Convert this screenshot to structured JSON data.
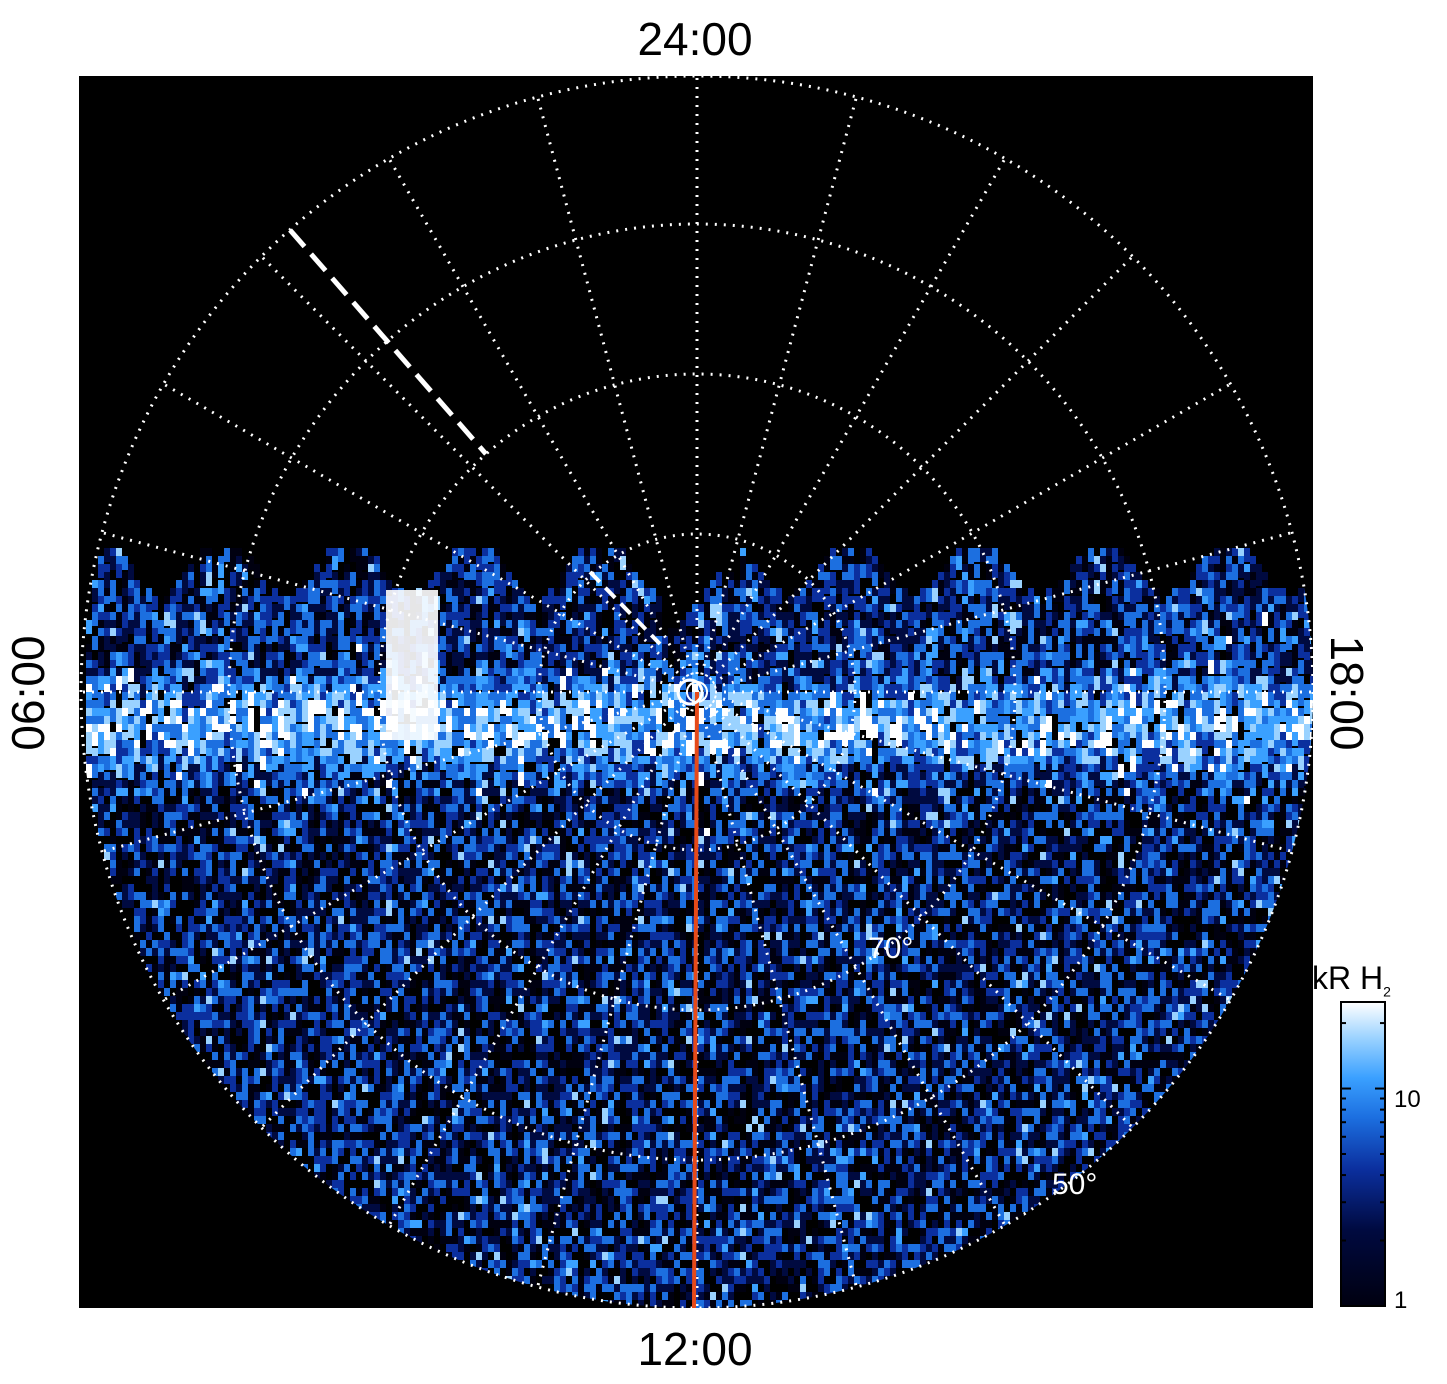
{
  "labels": {
    "top": "24:00",
    "bottom": "12:00",
    "left": "06:00",
    "right": "18:00",
    "lat_70": "70°",
    "lat_50": "50°"
  },
  "colorbar": {
    "title": "kR H",
    "title_sub": "2",
    "tick_10": "10",
    "tick_1": "1",
    "scale": "log",
    "stops": [
      "#000010",
      "#000a40",
      "#0b2f9e",
      "#1c6fe0",
      "#3aa0ff",
      "#9ad2ff",
      "#ffffff"
    ]
  },
  "colors": {
    "background": "#000000",
    "grid": "#ffffff",
    "noon_meridian": "#e64a19"
  }
}
